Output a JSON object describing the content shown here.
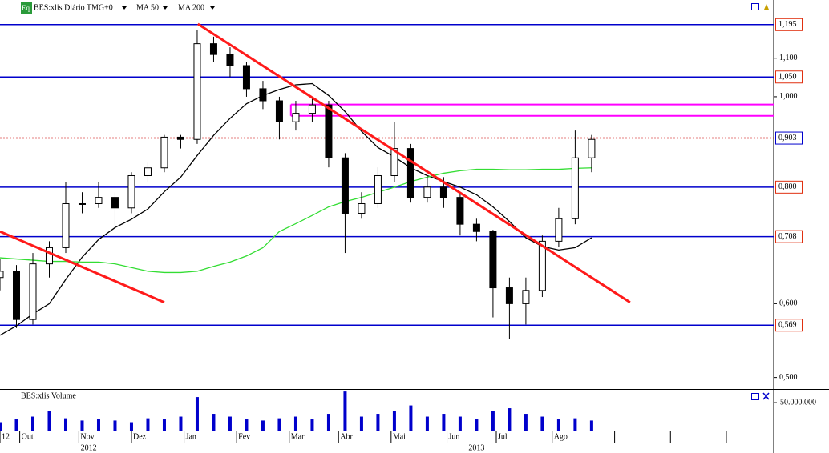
{
  "chart_data": {
    "type": "candlestick",
    "title": "BES:xlis Diário TMG+0",
    "log_scale": true,
    "x": [
      0,
      5,
      10,
      15,
      20,
      25,
      30,
      35,
      40,
      45,
      50,
      55,
      60,
      65,
      70,
      75,
      80,
      85,
      90,
      95,
      100,
      105,
      110,
      115,
      120,
      125,
      130,
      135,
      140,
      145,
      150,
      155,
      160,
      165,
      170,
      175,
      180
    ],
    "open": [
      0.64,
      0.65,
      0.577,
      0.662,
      0.689,
      0.768,
      0.768,
      0.78,
      0.76,
      0.823,
      0.839,
      0.905,
      0.9,
      1.14,
      1.11,
      1.08,
      1.02,
      0.99,
      0.94,
      0.96,
      0.98,
      0.86,
      0.75,
      0.768,
      0.823,
      0.88,
      0.78,
      0.8,
      0.78,
      0.73,
      0.717,
      0.624,
      0.6,
      0.62,
      0.7,
      0.74,
      0.86
    ],
    "high": [
      0.67,
      0.66,
      0.68,
      0.7,
      0.81,
      0.79,
      0.81,
      0.79,
      0.83,
      0.85,
      0.91,
      0.91,
      1.18,
      1.16,
      1.13,
      1.09,
      1.04,
      1.0,
      0.99,
      1.0,
      0.99,
      0.87,
      0.79,
      0.84,
      0.94,
      0.89,
      0.82,
      0.82,
      0.79,
      0.74,
      0.72,
      0.64,
      0.64,
      0.71,
      0.76,
      0.92,
      0.91
    ],
    "low": [
      0.62,
      0.565,
      0.57,
      0.64,
      0.68,
      0.75,
      0.76,
      0.72,
      0.75,
      0.81,
      0.83,
      0.88,
      0.89,
      1.09,
      1.05,
      1.0,
      0.97,
      0.9,
      0.92,
      0.94,
      0.84,
      0.68,
      0.74,
      0.76,
      0.81,
      0.77,
      0.77,
      0.76,
      0.71,
      0.7,
      0.58,
      0.55,
      0.57,
      0.61,
      0.69,
      0.73,
      0.83
    ],
    "close": [
      0.65,
      0.577,
      0.662,
      0.689,
      0.768,
      0.768,
      0.78,
      0.76,
      0.823,
      0.839,
      0.905,
      0.9,
      1.14,
      1.11,
      1.08,
      1.02,
      0.99,
      0.94,
      0.96,
      0.98,
      0.86,
      0.75,
      0.768,
      0.823,
      0.88,
      0.78,
      0.8,
      0.78,
      0.73,
      0.717,
      0.624,
      0.6,
      0.62,
      0.7,
      0.74,
      0.86,
      0.9
    ],
    "series": [
      {
        "name": "MA 50",
        "color": "#000000",
        "values": [
          0.555,
          0.568,
          0.585,
          0.6,
          0.637,
          0.673,
          0.703,
          0.724,
          0.739,
          0.758,
          0.791,
          0.82,
          0.865,
          0.909,
          0.948,
          0.983,
          1.003,
          1.018,
          1.03,
          1.033,
          1.003,
          0.964,
          0.918,
          0.882,
          0.862,
          0.839,
          0.823,
          0.811,
          0.8,
          0.785,
          0.762,
          0.735,
          0.706,
          0.691,
          0.685,
          0.689,
          0.706
        ]
      },
      {
        "name": "MA 200",
        "color": "#33dd33",
        "values": [
          0.672,
          0.67,
          0.668,
          0.666,
          0.666,
          0.665,
          0.665,
          0.662,
          0.656,
          0.65,
          0.648,
          0.648,
          0.65,
          0.658,
          0.665,
          0.675,
          0.689,
          0.717,
          0.731,
          0.746,
          0.762,
          0.772,
          0.78,
          0.79,
          0.8,
          0.811,
          0.82,
          0.828,
          0.833,
          0.836,
          0.836,
          0.835,
          0.835,
          0.836,
          0.836,
          0.838,
          0.839
        ]
      }
    ],
    "xlim": [
      0,
      235.4
    ],
    "ylim": [
      0.486,
      1.27
    ],
    "yticks": [
      {
        "value": 1.1,
        "label": "1,100"
      },
      {
        "value": 1.0,
        "label": "1,000"
      },
      {
        "value": 0.6,
        "label": "0,600"
      },
      {
        "value": 0.5,
        "label": "0,500"
      }
    ],
    "xticks": [
      {
        "value": 0,
        "label": "12"
      },
      {
        "value": 6,
        "label": "Out"
      },
      {
        "value": 24,
        "label": "Nov"
      },
      {
        "value": 40,
        "label": "Dez"
      },
      {
        "value": 56,
        "label": "Jan"
      },
      {
        "value": 72,
        "label": "Fev"
      },
      {
        "value": 88,
        "label": "Mar"
      },
      {
        "value": 103,
        "label": "Abr"
      },
      {
        "value": 119,
        "label": "Mai"
      },
      {
        "value": 136,
        "label": "Jun"
      },
      {
        "value": 151,
        "label": "Jul"
      },
      {
        "value": 168,
        "label": "Ago"
      },
      {
        "value": 187,
        "label": ""
      },
      {
        "value": 204,
        "label": ""
      },
      {
        "value": 221,
        "label": ""
      }
    ],
    "year_ticks": [
      {
        "value": 27,
        "label": "2012"
      },
      {
        "value": 145,
        "label": "2013"
      }
    ],
    "levels": [
      {
        "value": 1.195,
        "label": "1,195",
        "color": "#0000cc",
        "label_color": "#e03010",
        "style": "solid"
      },
      {
        "value": 1.05,
        "label": "1,050",
        "color": "#0000cc",
        "label_color": "#e03010",
        "style": "solid"
      },
      {
        "value": 0.903,
        "label": "0,903",
        "color": "#cc0000",
        "label_color": "#0000cc",
        "style": "dotted"
      },
      {
        "value": 0.8,
        "label": "0,800",
        "color": "#0000cc",
        "label_color": "#e03010",
        "style": "solid"
      },
      {
        "value": 0.708,
        "label": "0,708",
        "color": "#0000cc",
        "label_color": "#e03010",
        "style": "solid"
      },
      {
        "value": 0.569,
        "label": "0,569",
        "color": "#0000cc",
        "label_color": "#e03010",
        "style": "solid"
      }
    ],
    "trendlines": [
      {
        "x": [
          0,
          50
        ],
        "y": [
          0.717,
          0.602
        ],
        "color": "#ff1a1a"
      },
      {
        "x": [
          60.2,
          191.7
        ],
        "y": [
          1.197,
          0.602
        ],
        "color": "#ff1a1a"
      }
    ],
    "zone": {
      "x": 88.5,
      "y": [
        0.981,
        0.954
      ],
      "color": "#ff00ff"
    },
    "volume": {
      "title": "BES:xlis Volume",
      "color": "#0000cc",
      "values": [
        15000000,
        20000000,
        25000000,
        35000000,
        22000000,
        18000000,
        20000000,
        18000000,
        15000000,
        22000000,
        20000000,
        25000000,
        60000000,
        30000000,
        25000000,
        20000000,
        18000000,
        22000000,
        25000000,
        20000000,
        30000000,
        70000000,
        25000000,
        30000000,
        35000000,
        45000000,
        25000000,
        30000000,
        25000000,
        20000000,
        35000000,
        40000000,
        30000000,
        25000000,
        20000000,
        22000000,
        18000000
      ],
      "ylim": [
        0,
        73000000
      ],
      "yticks": [
        {
          "value": 50000000,
          "label": "50.000.000"
        }
      ]
    }
  }
}
